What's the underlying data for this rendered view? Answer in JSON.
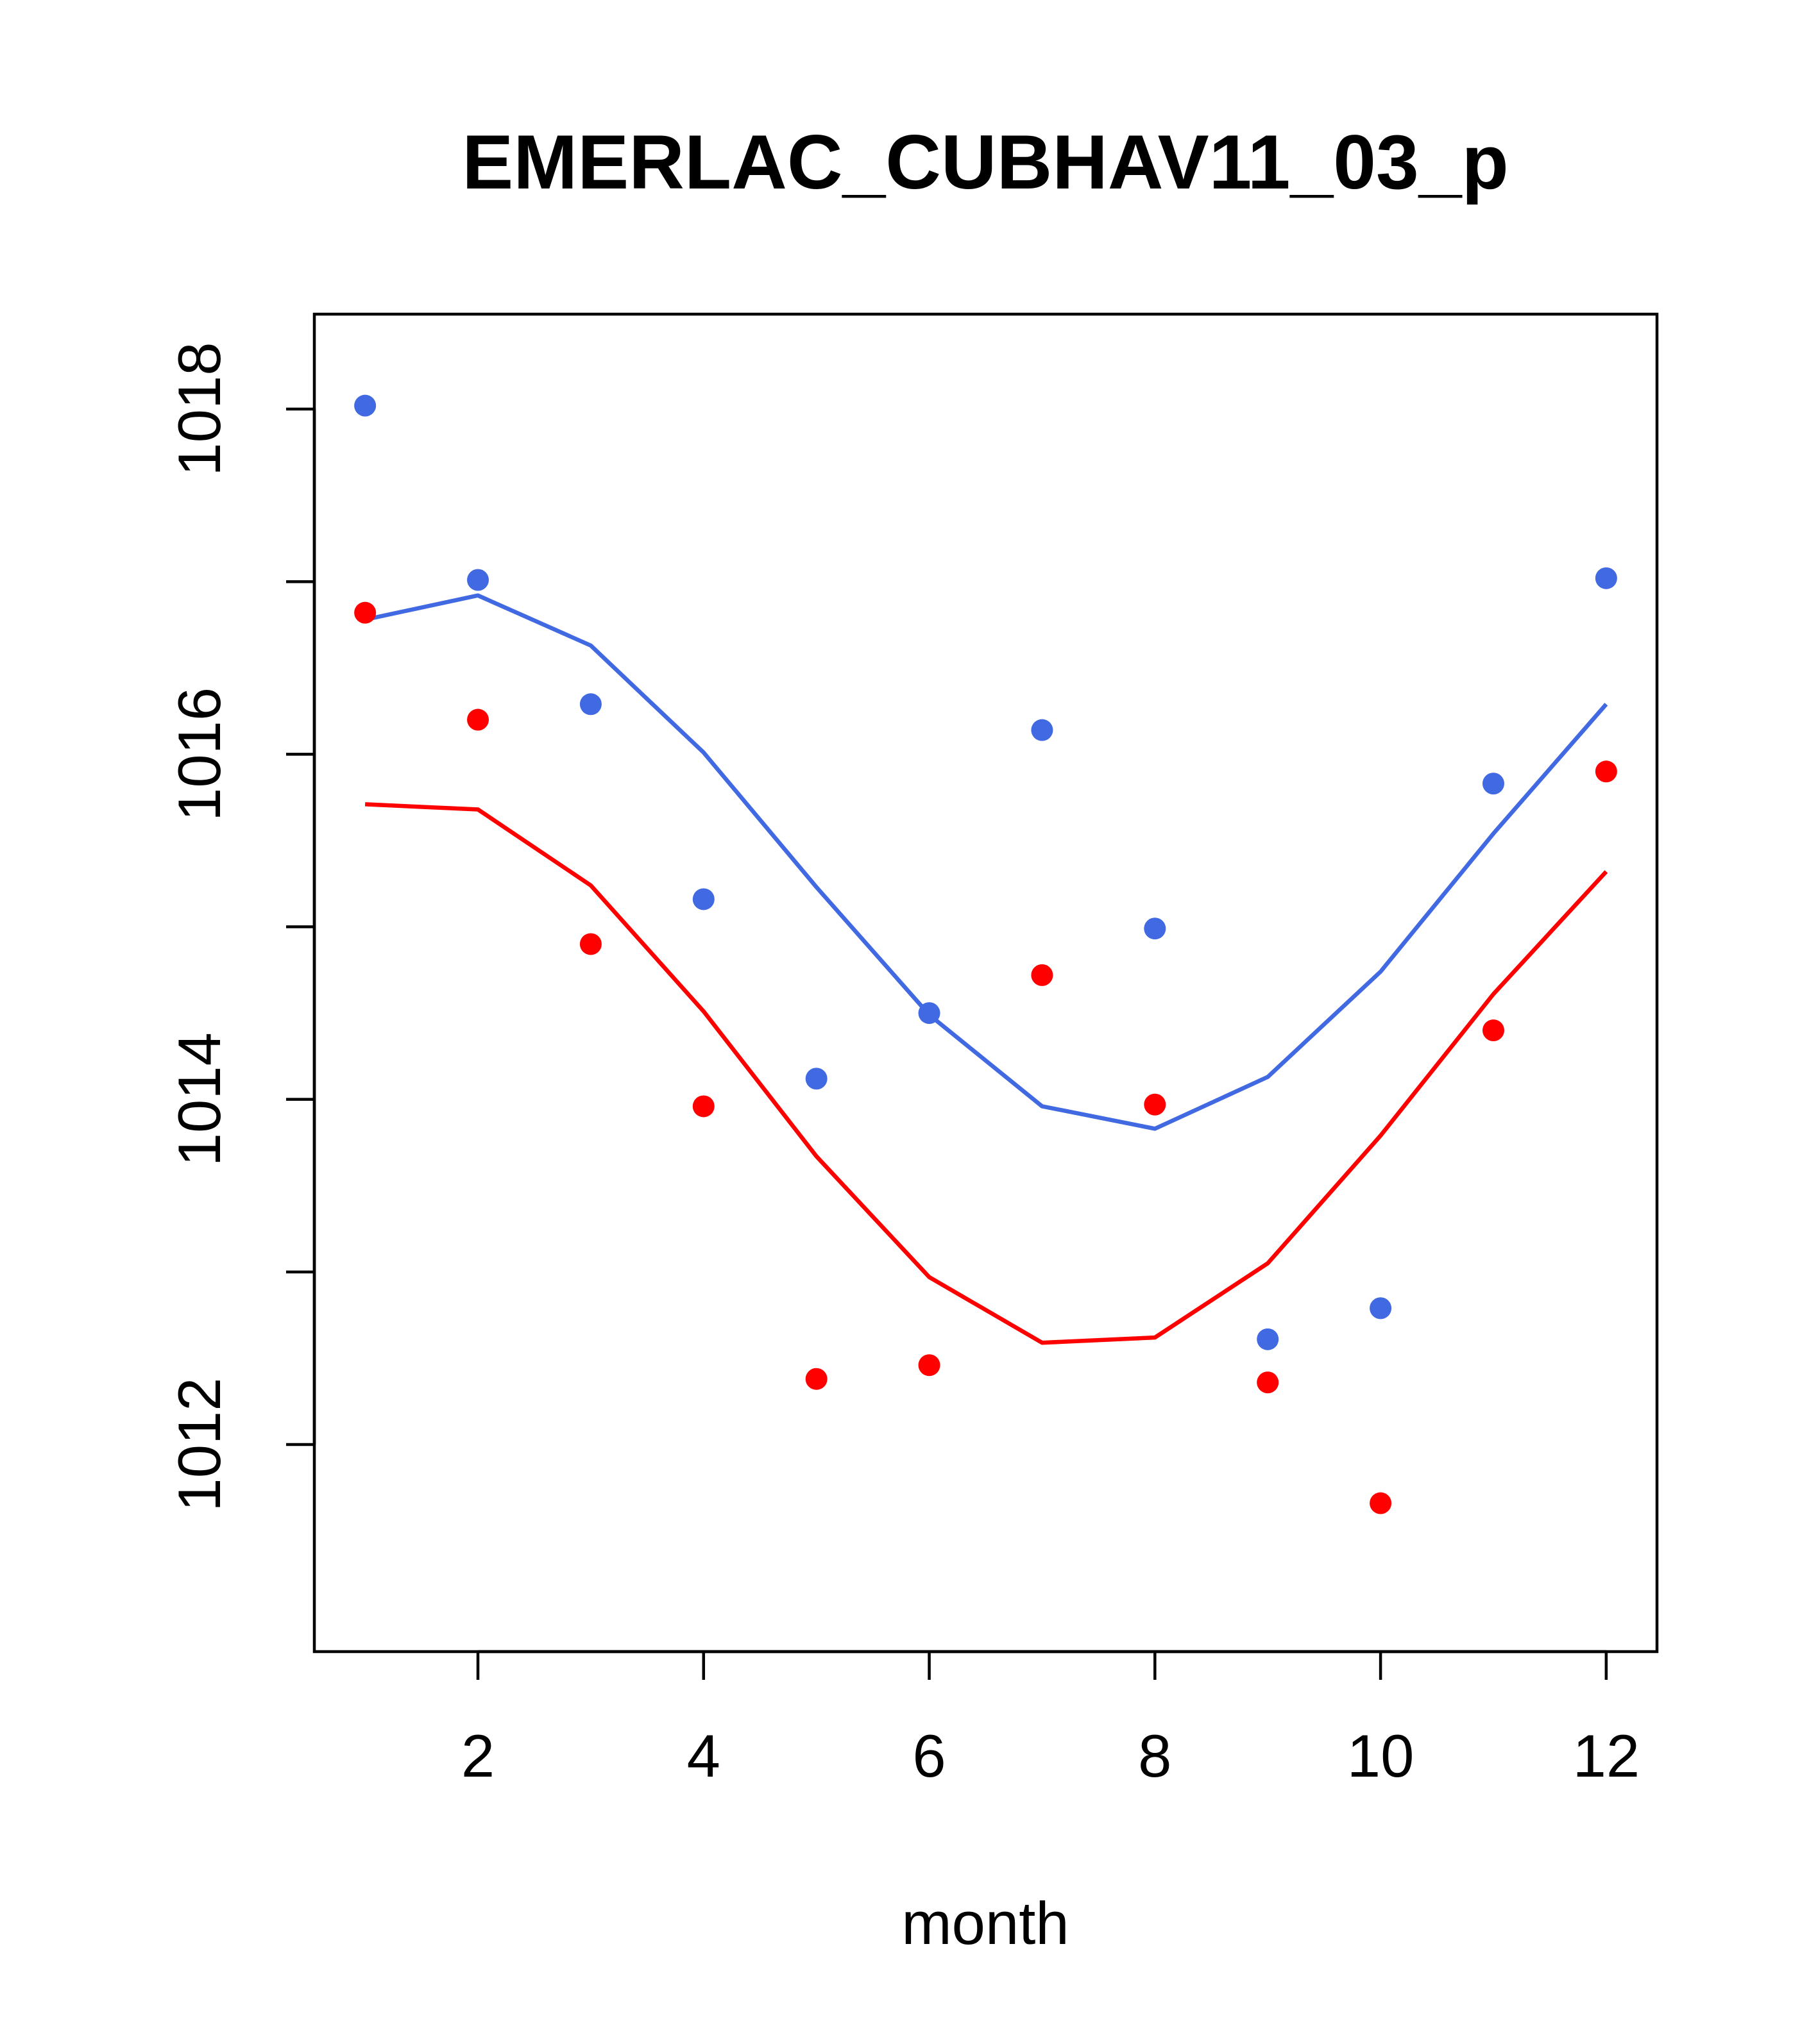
{
  "chart_data": {
    "type": "scatter",
    "title": "EMERLAC_CUBHAV11_03_p",
    "xlabel": "month",
    "ylabel": "",
    "xlim": [
      0.55,
      12.45
    ],
    "ylim": [
      1010.8,
      1018.55
    ],
    "x_ticks": [
      2,
      4,
      6,
      8,
      10,
      12
    ],
    "x_tick_labels": [
      "2",
      "4",
      "6",
      "8",
      "10",
      "12"
    ],
    "y_ticks": [
      1012,
      1013,
      1014,
      1015,
      1016,
      1017,
      1018
    ],
    "y_tick_labels": [
      "1012",
      "",
      "1014",
      "",
      "1016",
      "",
      "1018"
    ],
    "x": [
      1,
      2,
      3,
      4,
      5,
      6,
      7,
      8,
      9,
      10,
      11,
      12
    ],
    "series": [
      {
        "name": "blue points",
        "kind": "points",
        "color": "#4169E1",
        "values": [
          1018.02,
          1017.01,
          1016.29,
          1015.16,
          1014.12,
          1014.5,
          1016.14,
          1014.99,
          1012.61,
          1012.79,
          1015.83,
          1017.02
        ]
      },
      {
        "name": "red points",
        "kind": "points",
        "color": "#FF0000",
        "values": [
          1016.82,
          1016.2,
          1014.9,
          1013.96,
          1012.38,
          1012.46,
          1014.72,
          1013.97,
          1012.36,
          1011.66,
          1014.4,
          1015.9
        ]
      },
      {
        "name": "blue curve",
        "kind": "line",
        "color": "#4169E1",
        "values": [
          1016.78,
          1016.92,
          1016.63,
          1016.01,
          1015.23,
          1014.49,
          1013.96,
          1013.83,
          1014.13,
          1014.74,
          1015.54,
          1016.29
        ]
      },
      {
        "name": "red curve",
        "kind": "line",
        "color": "#FF0000",
        "values": [
          1015.71,
          1015.68,
          1015.24,
          1014.51,
          1013.67,
          1012.97,
          1012.59,
          1012.62,
          1013.05,
          1013.79,
          1014.61,
          1015.32
        ]
      }
    ]
  }
}
